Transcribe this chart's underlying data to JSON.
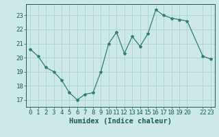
{
  "x": [
    0,
    1,
    2,
    3,
    4,
    5,
    6,
    7,
    8,
    9,
    10,
    11,
    12,
    13,
    14,
    15,
    16,
    17,
    18,
    19,
    20,
    22,
    23
  ],
  "y": [
    20.6,
    20.1,
    19.3,
    19.0,
    18.4,
    17.5,
    17.0,
    17.4,
    17.5,
    19.0,
    21.0,
    21.8,
    20.3,
    21.5,
    20.8,
    21.7,
    23.4,
    23.0,
    22.8,
    22.7,
    22.6,
    20.1,
    19.9
  ],
  "xlabel": "Humidex (Indice chaleur)",
  "xlim": [
    -0.5,
    23.5
  ],
  "ylim": [
    16.5,
    23.8
  ],
  "yticks": [
    17,
    18,
    19,
    20,
    21,
    22,
    23
  ],
  "line_color": "#2e7d6e",
  "marker": "*",
  "bg_color": "#cce8e8",
  "grid_color": "#b0d4d4",
  "tick_color": "#1a5c50",
  "label_color": "#1a5c50",
  "font_size": 6.5,
  "xlabel_fontsize": 7.5
}
